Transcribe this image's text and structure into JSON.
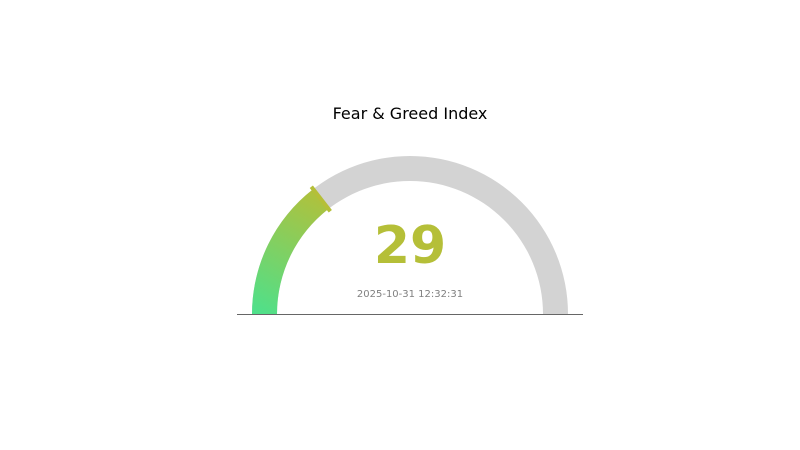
{
  "chart_data": {
    "type": "gauge",
    "title": "Fear & Greed Index",
    "value": 29,
    "value_label": "29",
    "range": [
      0,
      100
    ],
    "timestamp": "2025-10-31 12:32:31",
    "colors": {
      "gradient_start": "#4fe08a",
      "gradient_end": "#b5bf38",
      "value_text": "#b5bf38",
      "track": "#d3d3d3",
      "timestamp_text": "#808080",
      "baseline": "#666666"
    }
  }
}
